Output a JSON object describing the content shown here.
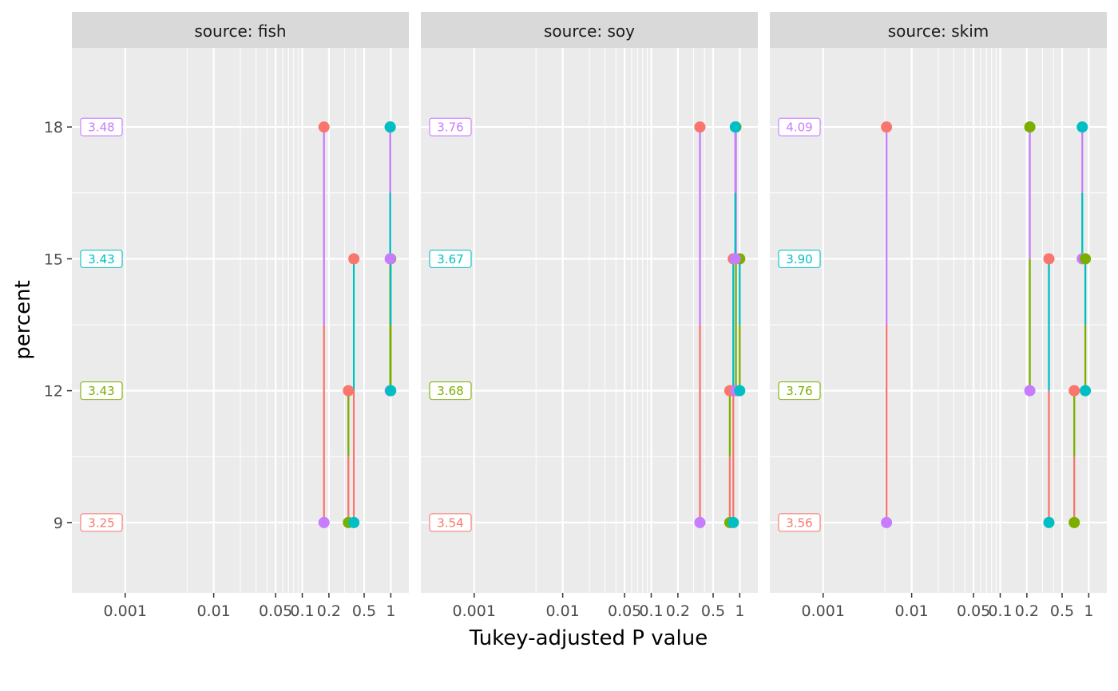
{
  "chart_data": {
    "type": "scatter",
    "xlabel": "Tukey-adjusted P value",
    "ylabel": "percent",
    "x_scale": "log10",
    "xlim": [
      0.00025,
      1.6
    ],
    "ylim": [
      7.4,
      19.8
    ],
    "x_ticks": [
      {
        "value": 0.001,
        "label": "0.001"
      },
      {
        "value": 0.01,
        "label": "0.01"
      },
      {
        "value": 0.05,
        "label": "0.05"
      },
      {
        "value": 0.1,
        "label": "0.1"
      },
      {
        "value": 0.2,
        "label": "0.2"
      },
      {
        "value": 0.5,
        "label": "0.5"
      },
      {
        "value": 1,
        "label": "1"
      }
    ],
    "y_ticks": [
      {
        "value": 9,
        "label": "9"
      },
      {
        "value": 12,
        "label": "12"
      },
      {
        "value": 15,
        "label": "15"
      },
      {
        "value": 18,
        "label": "18"
      }
    ],
    "level_colors": {
      "9": "#F8766D",
      "12": "#7CAE00",
      "15": "#00BFC4",
      "18": "#C77CFF"
    },
    "grid": true,
    "legend": "none",
    "panels": [
      {
        "strip": "source: fish",
        "estimates": [
          {
            "percent": 9,
            "label": "3.25"
          },
          {
            "percent": 12,
            "label": "3.43"
          },
          {
            "percent": 15,
            "label": "3.43"
          },
          {
            "percent": 18,
            "label": "3.48"
          }
        ],
        "comparisons": [
          {
            "from": 9,
            "to": 18,
            "p": 0.176
          },
          {
            "from": 9,
            "to": 12,
            "p": 0.332
          },
          {
            "from": 9,
            "to": 15,
            "p": 0.383
          },
          {
            "from": 12,
            "to": 18,
            "p": 0.985
          },
          {
            "from": 12,
            "to": 15,
            "p": 0.998
          },
          {
            "from": 15,
            "to": 18,
            "p": 0.985
          }
        ]
      },
      {
        "strip": "source: soy",
        "estimates": [
          {
            "percent": 9,
            "label": "3.54"
          },
          {
            "percent": 12,
            "label": "3.68"
          },
          {
            "percent": 15,
            "label": "3.67"
          },
          {
            "percent": 18,
            "label": "3.76"
          }
        ],
        "comparisons": [
          {
            "from": 9,
            "to": 18,
            "p": 0.355
          },
          {
            "from": 9,
            "to": 12,
            "p": 0.772
          },
          {
            "from": 9,
            "to": 15,
            "p": 0.845
          },
          {
            "from": 12,
            "to": 18,
            "p": 0.905
          },
          {
            "from": 12,
            "to": 15,
            "p": 0.999
          },
          {
            "from": 15,
            "to": 18,
            "p": 0.89
          }
        ]
      },
      {
        "strip": "source: skim",
        "estimates": [
          {
            "percent": 9,
            "label": "3.56"
          },
          {
            "percent": 12,
            "label": "3.76"
          },
          {
            "percent": 15,
            "label": "3.90"
          },
          {
            "percent": 18,
            "label": "4.09"
          }
        ],
        "comparisons": [
          {
            "from": 9,
            "to": 18,
            "p": 0.0052
          },
          {
            "from": 12,
            "to": 18,
            "p": 0.216
          },
          {
            "from": 9,
            "to": 15,
            "p": 0.355
          },
          {
            "from": 9,
            "to": 12,
            "p": 0.686
          },
          {
            "from": 15,
            "to": 18,
            "p": 0.845
          },
          {
            "from": 12,
            "to": 15,
            "p": 0.915
          }
        ]
      }
    ]
  }
}
